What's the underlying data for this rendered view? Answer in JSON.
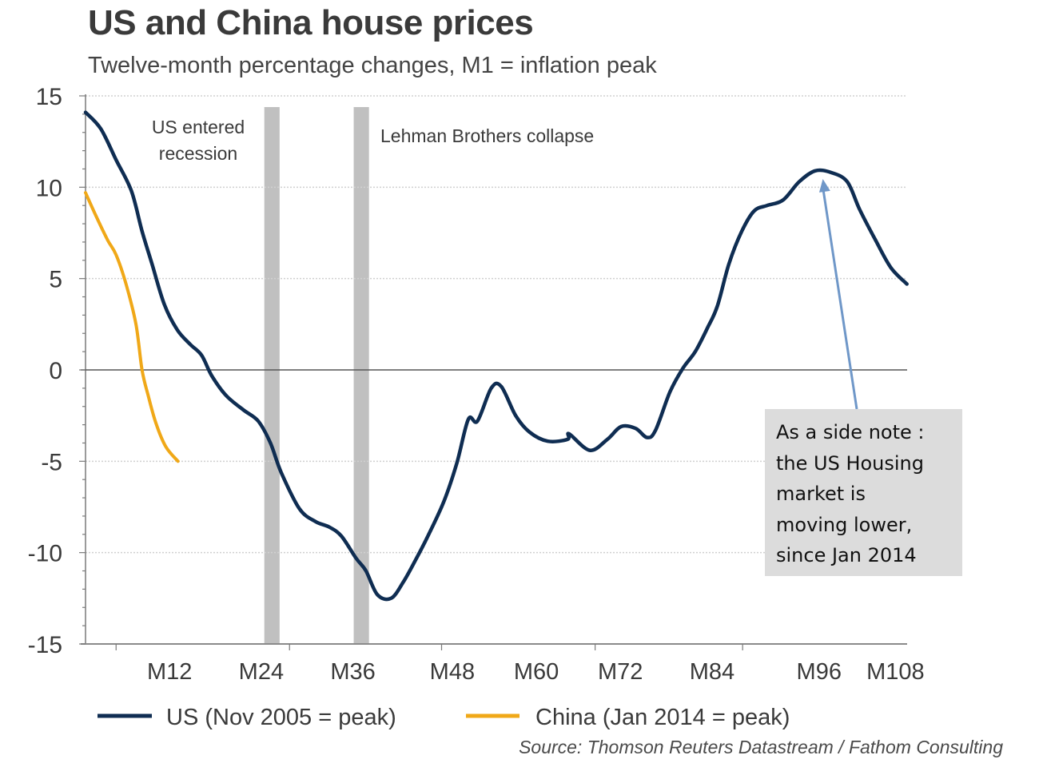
{
  "chart_data": {
    "type": "line",
    "title": "US and China house prices",
    "subtitle": "Twelve-month percentage changes, M1 = inflation peak",
    "xlabel": "",
    "ylabel": "",
    "ylim": [
      -15,
      15
    ],
    "xlim": [
      1,
      108.5
    ],
    "yticks": [
      "15",
      "10",
      "5",
      "0",
      "-5",
      "-10",
      "-15"
    ],
    "ytick_values": [
      15,
      10,
      5,
      0,
      -5,
      -10,
      -15
    ],
    "xtick_labels": [
      "M12",
      "M24",
      "M36",
      "M48",
      "M60",
      "M72",
      "M84",
      "M96",
      "M108"
    ],
    "xtick_label_months": [
      12,
      24,
      36,
      49,
      60,
      71,
      83,
      97,
      107
    ],
    "grid": "horizontal dotted at major y ticks",
    "legend_position": "bottom",
    "series": [
      {
        "name": "US (Nov 2005 = peak)",
        "color": "#0f2d52",
        "x": [
          1,
          3,
          5,
          7,
          8.4,
          9.7,
          11.3,
          13,
          14.7,
          16.2,
          17.5,
          19.4,
          21.7,
          23.6,
          25.2,
          26.6,
          29,
          31.1,
          32.9,
          34.5,
          36.4,
          37.7,
          39.2,
          41,
          42.6,
          44.2,
          45.8,
          47.9,
          49.6,
          51.1,
          52.3,
          54.1,
          55.4,
          57.3,
          59.1,
          61.5,
          64.1,
          64.3,
          67,
          69.3,
          71.1,
          73,
          74.5,
          75.6,
          77.5,
          79.2,
          80.8,
          82.4,
          83.7,
          85.2,
          86.9,
          88.5,
          90.2,
          92.3,
          94.4,
          96.5,
          98.6,
          100.7,
          102.3,
          104.4,
          106.4,
          108.5
        ],
        "values": [
          14.1,
          13.2,
          11.5,
          9.8,
          7.6,
          5.8,
          3.6,
          2.2,
          1.4,
          0.8,
          -0.3,
          -1.4,
          -2.2,
          -2.8,
          -4.0,
          -5.6,
          -7.6,
          -8.3,
          -8.6,
          -9.1,
          -10.3,
          -11.0,
          -12.3,
          -12.5,
          -11.6,
          -10.4,
          -9.1,
          -7.2,
          -5.1,
          -2.7,
          -2.8,
          -1.0,
          -0.9,
          -2.5,
          -3.4,
          -3.9,
          -3.8,
          -3.5,
          -4.4,
          -3.8,
          -3.1,
          -3.2,
          -3.7,
          -3.3,
          -1.2,
          0.1,
          1.0,
          2.3,
          3.5,
          5.8,
          7.6,
          8.7,
          9.0,
          9.3,
          10.3,
          10.9,
          10.8,
          10.3,
          8.8,
          7.1,
          5.6,
          4.7
        ]
      },
      {
        "name": "China (Jan 2014 = peak)",
        "color": "#f0a818",
        "x": [
          1,
          2.4,
          3.9,
          5,
          6.3,
          7.6,
          8.4,
          9.2,
          10.2,
          11.5,
          13.1
        ],
        "values": [
          9.7,
          8.4,
          7.1,
          6.3,
          4.7,
          2.5,
          0.0,
          -1.4,
          -2.9,
          -4.2,
          -5.0
        ]
      }
    ],
    "shaded_bands": [
      {
        "from": 24.4,
        "to": 26.4,
        "label": "US entered recession",
        "label_lines": [
          "US entered",
          "recession"
        ]
      },
      {
        "from": 36.1,
        "to": 38.1,
        "label": "Lehman Brothers collapse",
        "label_lines": [
          "Lehman Brothers collapse"
        ]
      }
    ],
    "band_color": "#c0c0c0",
    "annotation": {
      "text_lines": [
        "As a side note :",
        "the US Housing",
        "market is",
        "moving lower,",
        "since Jan 2014"
      ],
      "points_to_month": 97.5,
      "points_to_value": 10.8,
      "arrow_color": "#6f97c8",
      "box_color": "#dcdcdc"
    },
    "source": "Source: Thomson Reuters Datastream / Fathom Consulting"
  }
}
